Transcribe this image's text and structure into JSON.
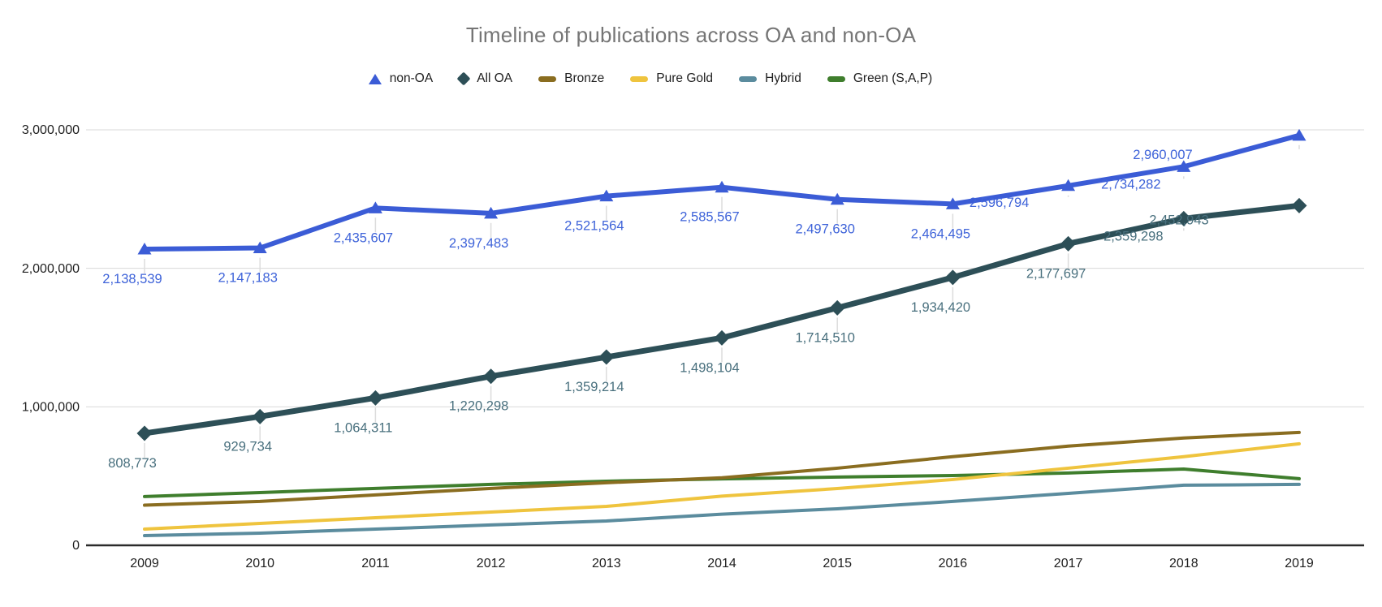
{
  "chart_data": {
    "type": "line",
    "title": "Timeline of publications across OA and non-OA",
    "xlabel": "",
    "ylabel": "",
    "x_labels": [
      "2009",
      "2010",
      "2011",
      "2012",
      "2013",
      "2014",
      "2015",
      "2016",
      "2017",
      "2018",
      "2019"
    ],
    "y_ticks": [
      {
        "value": 0,
        "label": "0"
      },
      {
        "value": 1000000,
        "label": "1,000,000"
      },
      {
        "value": 2000000,
        "label": "2,000,000"
      },
      {
        "value": 3000000,
        "label": "3,000,000"
      }
    ],
    "ylim": [
      0,
      3100000
    ],
    "grid": "horizontal",
    "legend_position": "top",
    "series": [
      {
        "name": "non-OA",
        "slug": "non-oa",
        "color": "#3b5cd6",
        "label_color": "#3e63d9",
        "marker": "triangle",
        "line_width": 6,
        "labeled": true,
        "label_dx": -15,
        "label_dy": 42,
        "label_overrides": {
          "8": [
            -85,
            26
          ],
          "9": [
            -65,
            27
          ],
          "10": [
            -168,
            29
          ]
        },
        "values": [
          2138539,
          2147183,
          2435607,
          2397483,
          2521564,
          2585567,
          2497630,
          2464495,
          2596794,
          2734282,
          2960007
        ]
      },
      {
        "name": "All OA",
        "slug": "all-oa",
        "color": "#2d4f57",
        "label_color": "#49707e",
        "marker": "diamond",
        "line_width": 7,
        "labeled": true,
        "label_dx": -15,
        "label_dy": 42,
        "label_overrides": {
          "9": [
            -62,
            27
          ],
          "10": [
            -148,
            23
          ]
        },
        "values": [
          808773,
          929734,
          1064311,
          1220298,
          1359214,
          1498104,
          1714510,
          1934420,
          2177697,
          2359298,
          2452943
        ]
      },
      {
        "name": "Bronze",
        "slug": "bronze",
        "color": "#8a6d20",
        "marker": "none",
        "line_width": 4,
        "labeled": false,
        "values": [
          290000,
          317000,
          364000,
          411000,
          452000,
          488000,
          557000,
          640000,
          716000,
          775000,
          815000
        ]
      },
      {
        "name": "Pure Gold",
        "slug": "pure-gold",
        "color": "#efc43e",
        "marker": "none",
        "line_width": 4,
        "labeled": false,
        "values": [
          117000,
          158000,
          199000,
          240000,
          281000,
          355000,
          410000,
          475000,
          557000,
          640000,
          733000
        ]
      },
      {
        "name": "Hybrid",
        "slug": "hybrid",
        "color": "#5b8c9e",
        "marker": "none",
        "line_width": 4,
        "labeled": false,
        "values": [
          70000,
          88000,
          117000,
          147000,
          176000,
          225000,
          264000,
          317000,
          375000,
          434000,
          440000
        ]
      },
      {
        "name": "Green (S,A,P)",
        "slug": "green-s-a-p",
        "color": "#3f7e2d",
        "marker": "none",
        "line_width": 4,
        "labeled": false,
        "values": [
          352000,
          381000,
          411000,
          440000,
          463000,
          480000,
          493000,
          504000,
          522000,
          551000,
          481000
        ]
      }
    ],
    "style": {
      "title_color": "#757575",
      "legend_text_color": "#212121",
      "tick_label_color": "#1f1f1f",
      "gridline_color": "#dadada",
      "axis_line_color": "#2b2b2b",
      "leader_line_color": "#dcdcdc",
      "background": "#ffffff"
    }
  }
}
